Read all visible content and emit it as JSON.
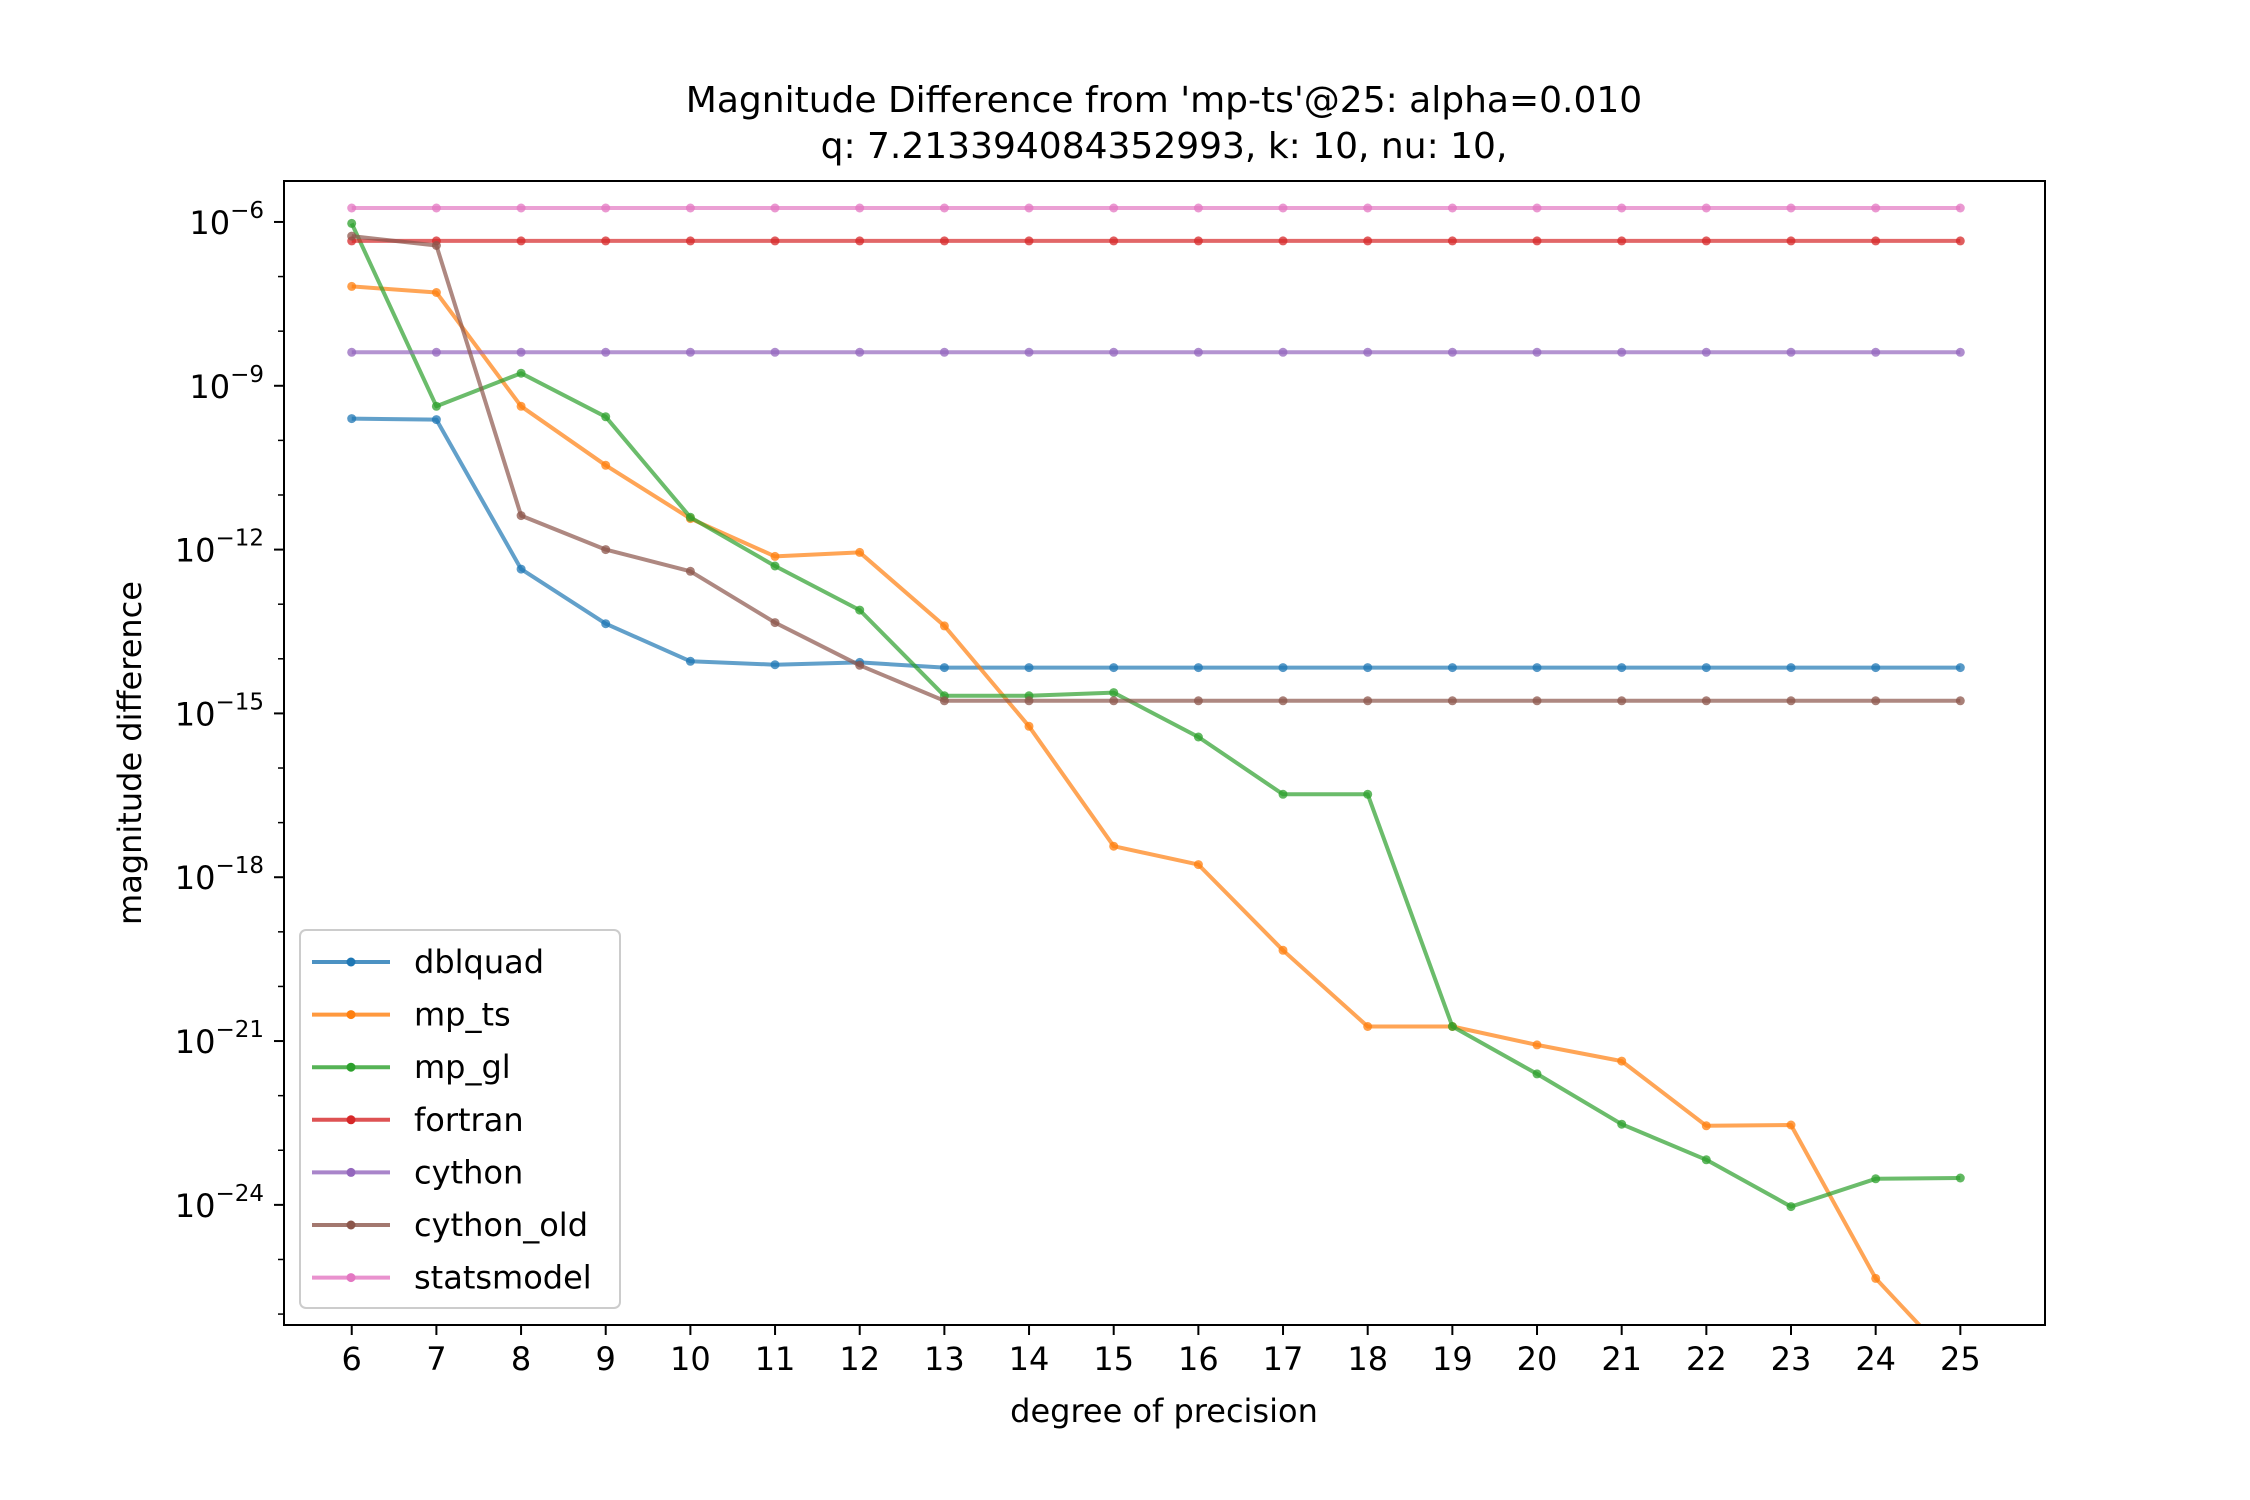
{
  "chart_data": {
    "type": "line",
    "title": "Magnitude Difference from 'mp-ts'@25: alpha=0.010",
    "subtitle": "q: 7.213394084352993, k: 10, nu: 10,",
    "xlabel": "degree of precision",
    "ylabel": "magnitude difference",
    "yscale": "log",
    "grid": false,
    "legend_position": "lower-left",
    "x": [
      6,
      7,
      8,
      9,
      10,
      11,
      12,
      13,
      14,
      15,
      16,
      17,
      18,
      19,
      20,
      21,
      22,
      23,
      24,
      25
    ],
    "xticks": [
      "6",
      "7",
      "8",
      "9",
      "10",
      "11",
      "12",
      "13",
      "14",
      "15",
      "16",
      "17",
      "18",
      "19",
      "20",
      "21",
      "22",
      "23",
      "24",
      "25"
    ],
    "xlim": [
      5.2,
      26.0
    ],
    "ylim_exponent": [
      -26.2,
      -5.25
    ],
    "yticks": [
      {
        "base": "10",
        "exp": "−6",
        "value_exp": -6
      },
      {
        "base": "10",
        "exp": "−9",
        "value_exp": -9
      },
      {
        "base": "10",
        "exp": "−12",
        "value_exp": -12
      },
      {
        "base": "10",
        "exp": "−15",
        "value_exp": -15
      },
      {
        "base": "10",
        "exp": "−18",
        "value_exp": -18
      },
      {
        "base": "10",
        "exp": "−21",
        "value_exp": -21
      },
      {
        "base": "10",
        "exp": "−24",
        "value_exp": -24
      }
    ],
    "series": [
      {
        "name": "dblquad",
        "color": "#1f77b4",
        "values": [
          2.5e-10,
          2.4e-10,
          4.4e-13,
          4.4e-14,
          9e-15,
          7.8e-15,
          8.6e-15,
          6.9e-15,
          6.9e-15,
          6.9e-15,
          6.9e-15,
          6.9e-15,
          6.9e-15,
          6.9e-15,
          6.9e-15,
          6.9e-15,
          6.9e-15,
          6.9e-15,
          6.9e-15,
          6.9e-15
        ]
      },
      {
        "name": "mp_ts",
        "color": "#ff7f0e",
        "values": [
          6.6e-08,
          5.1e-08,
          4.2e-10,
          3.5e-11,
          3.7e-12,
          7.5e-13,
          8.9e-13,
          4e-14,
          5.8e-16,
          3.7e-18,
          1.7e-18,
          4.6e-20,
          1.85e-21,
          1.85e-21,
          8.5e-22,
          4.3e-22,
          2.8e-23,
          2.9e-23,
          4.5e-26,
          1e-27
        ]
      },
      {
        "name": "mp_gl",
        "color": "#2ca02c",
        "values": [
          9.4e-07,
          4.2e-10,
          1.7e-09,
          2.7e-10,
          3.9e-12,
          5e-13,
          7.8e-14,
          2.1e-15,
          2.1e-15,
          2.4e-15,
          3.7e-16,
          3.3e-17,
          3.3e-17,
          1.85e-21,
          2.5e-22,
          3e-23,
          6.7e-24,
          9.3e-25,
          3e-24,
          3.1e-24
        ]
      },
      {
        "name": "fortran",
        "color": "#d62728",
        "values": [
          4.5e-07,
          4.5e-07,
          4.5e-07,
          4.5e-07,
          4.5e-07,
          4.5e-07,
          4.5e-07,
          4.5e-07,
          4.5e-07,
          4.5e-07,
          4.5e-07,
          4.5e-07,
          4.5e-07,
          4.5e-07,
          4.5e-07,
          4.5e-07,
          4.5e-07,
          4.5e-07,
          4.5e-07,
          4.5e-07
        ]
      },
      {
        "name": "cython",
        "color": "#9467bd",
        "values": [
          4.1e-09,
          4.1e-09,
          4.1e-09,
          4.1e-09,
          4.1e-09,
          4.1e-09,
          4.1e-09,
          4.1e-09,
          4.1e-09,
          4.1e-09,
          4.1e-09,
          4.1e-09,
          4.1e-09,
          4.1e-09,
          4.1e-09,
          4.1e-09,
          4.1e-09,
          4.1e-09,
          4.1e-09,
          4.1e-09
        ]
      },
      {
        "name": "cython_old",
        "color": "#8c564b",
        "values": [
          5.5e-07,
          3.7e-07,
          4.2e-12,
          1e-12,
          4e-13,
          4.6e-14,
          7.6e-15,
          1.7e-15,
          1.7e-15,
          1.7e-15,
          1.7e-15,
          1.7e-15,
          1.7e-15,
          1.7e-15,
          1.7e-15,
          1.7e-15,
          1.7e-15,
          1.7e-15,
          1.7e-15,
          1.7e-15
        ]
      },
      {
        "name": "statsmodel",
        "color": "#e377c2",
        "values": [
          1.8e-06,
          1.8e-06,
          1.8e-06,
          1.8e-06,
          1.8e-06,
          1.8e-06,
          1.8e-06,
          1.8e-06,
          1.8e-06,
          1.8e-06,
          1.8e-06,
          1.8e-06,
          1.8e-06,
          1.8e-06,
          1.8e-06,
          1.8e-06,
          1.8e-06,
          1.8e-06,
          1.8e-06,
          1.8e-06
        ]
      }
    ]
  }
}
